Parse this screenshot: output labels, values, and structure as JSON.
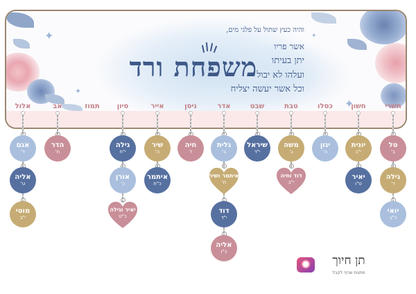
{
  "header": {
    "title": "משפחת ורד",
    "blessing_lines": [
      "והיה כעץ שתול על פלגי מים,",
      "אשר פריו",
      "יתן בעיתו",
      "ועלהו לא יבול",
      "וכל אשר יעשה יצליח"
    ]
  },
  "colors": {
    "navy": "#5670a0",
    "light_blue": "#a9bfdd",
    "gold": "#c6ac74",
    "rose": "#c98f98",
    "month_text": "#c37e86"
  },
  "months": [
    "תשרי",
    "חשון",
    "כסלו",
    "טבת",
    "שבט",
    "אדר",
    "ניסן",
    "אייר",
    "סיון",
    "תמוז",
    "אב",
    "אלול"
  ],
  "columns": [
    {
      "month": "תשרי",
      "tags": [
        {
          "name": "טל",
          "date": "ב'",
          "color": "rose",
          "shape": "circle"
        },
        {
          "name": "גילה",
          "date": "ד'",
          "color": "gold",
          "shape": "circle"
        },
        {
          "name": "יואי",
          "date": "כ\"ב",
          "color": "light_blue",
          "shape": "circle"
        }
      ]
    },
    {
      "month": "חשון",
      "tags": [
        {
          "name": "יונית",
          "date": "י\"ג",
          "color": "gold",
          "shape": "circle"
        },
        {
          "name": "יאיר",
          "date": "ט\"ו",
          "color": "navy",
          "shape": "circle"
        }
      ]
    },
    {
      "month": "כסלו",
      "tags": [
        {
          "name": "יגון",
          "date": "ה'",
          "color": "light_blue",
          "shape": "circle"
        }
      ]
    },
    {
      "month": "טבת",
      "tags": [
        {
          "name": "משה",
          "date": "ג'",
          "color": "gold",
          "shape": "circle"
        },
        {
          "name": "דוד וחיה",
          "date": "י\"ב",
          "color": "rose",
          "shape": "heart"
        }
      ]
    },
    {
      "month": "שבט",
      "tags": [
        {
          "name": "שיראל",
          "date": "י\"ד",
          "color": "navy",
          "shape": "circle"
        }
      ]
    },
    {
      "month": "אדר",
      "tags": [
        {
          "name": "גלית",
          "date": "ב'",
          "color": "light_blue",
          "shape": "circle"
        },
        {
          "name": "איתמר ושיר",
          "date": "ח'",
          "color": "gold",
          "shape": "heart"
        },
        {
          "name": "דוד",
          "date": "י\"ד",
          "color": "navy",
          "shape": "circle"
        },
        {
          "name": "אליה",
          "date": "כ\"ו",
          "color": "rose",
          "shape": "circle"
        }
      ]
    },
    {
      "month": "ניסן",
      "tags": [
        {
          "name": "חיה",
          "date": "ז'",
          "color": "rose",
          "shape": "circle"
        }
      ]
    },
    {
      "month": "אייר",
      "tags": [
        {
          "name": "שיר",
          "date": "ה'",
          "color": "gold",
          "shape": "circle"
        },
        {
          "name": "איתמר",
          "date": "כ\"ח",
          "color": "navy",
          "shape": "circle"
        }
      ]
    },
    {
      "month": "סיון",
      "tags": [
        {
          "name": "גילה",
          "date": "י\"ח",
          "color": "navy",
          "shape": "circle"
        },
        {
          "name": "אורן",
          "date": "כ'",
          "color": "light_blue",
          "shape": "circle"
        },
        {
          "name": "יאיר וגילה",
          "date": "כ\"ט",
          "color": "rose",
          "shape": "heart"
        }
      ]
    },
    {
      "month": "תמוז",
      "tags": []
    },
    {
      "month": "אב",
      "tags": [
        {
          "name": "הדר",
          "date": "ח'",
          "color": "rose",
          "shape": "circle"
        }
      ]
    },
    {
      "month": "אלול",
      "tags": [
        {
          "name": "אגם",
          "date": "ד'",
          "color": "light_blue",
          "shape": "circle"
        },
        {
          "name": "אליה",
          "date": "ט'",
          "color": "navy",
          "shape": "circle"
        },
        {
          "name": "מוטי",
          "date": "י\"ב",
          "color": "gold",
          "shape": "circle"
        }
      ]
    }
  ],
  "brand": {
    "name": "תן חיוך",
    "tagline": "מתנות שכיף לקבל"
  }
}
